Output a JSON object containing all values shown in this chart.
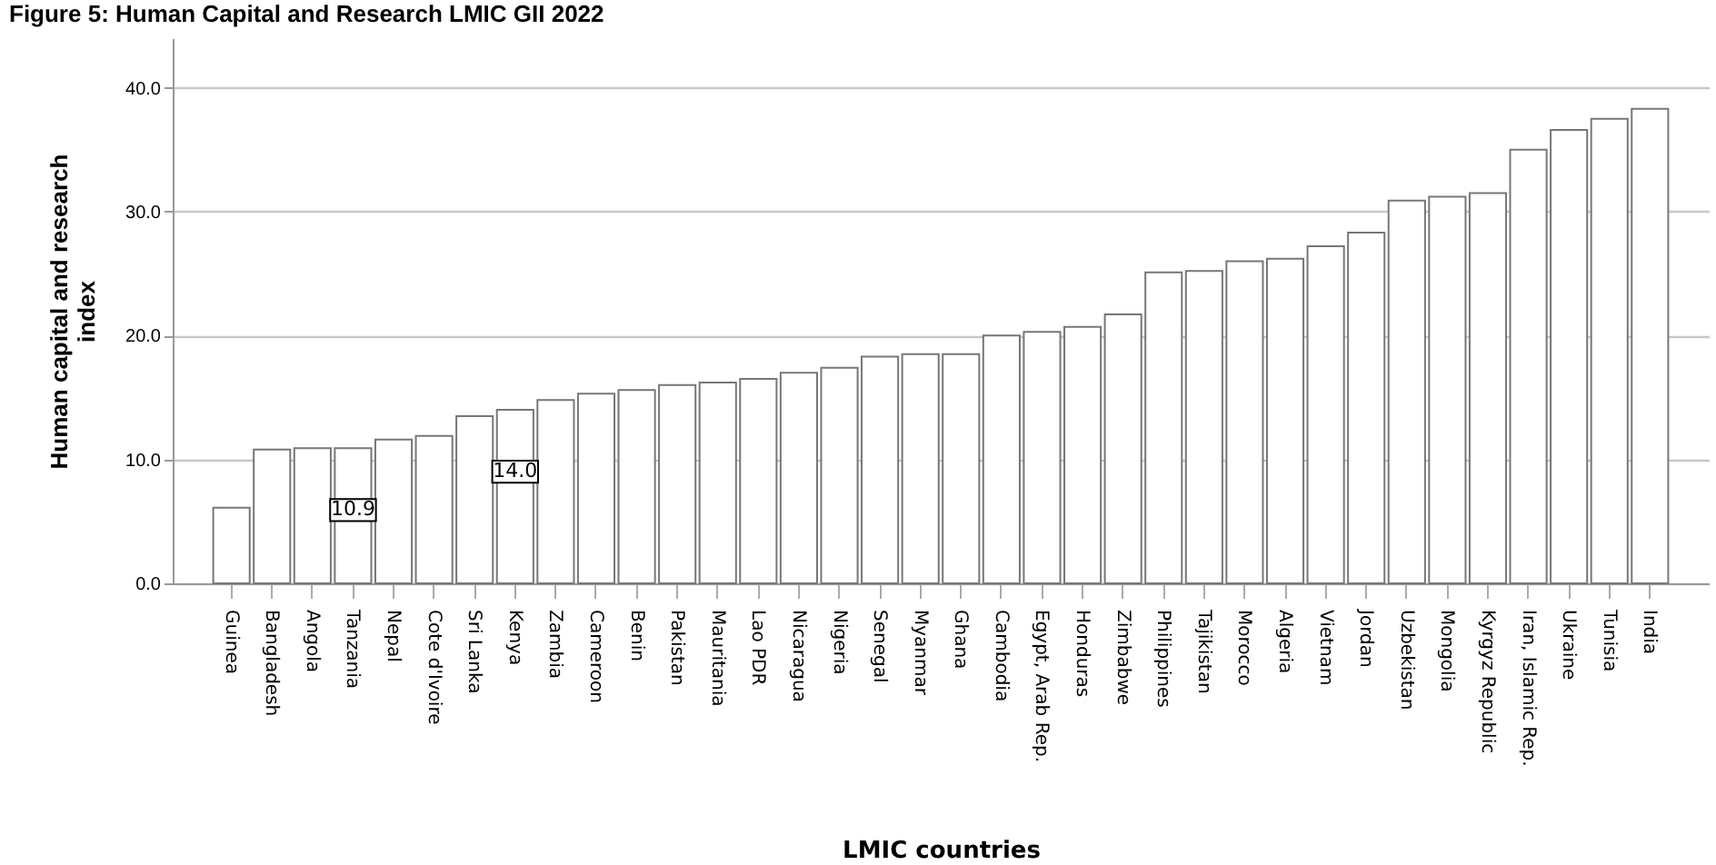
{
  "chart_data": {
    "type": "bar",
    "title": "Figure 5: Human Capital and Research LMIC GII 2022",
    "xlabel": "LMIC countries",
    "ylabel": "Human capital and research index",
    "categories": [
      "Guinea",
      "Bangladesh",
      "Angola",
      "Tanzania",
      "Nepal",
      "Cote d'Ivoire",
      "Sri Lanka",
      "Kenya",
      "Zambia",
      "Cameroon",
      "Benin",
      "Pakistan",
      "Mauritania",
      "Lao PDR",
      "Nicaragua",
      "Nigeria",
      "Senegal",
      "Myanmar",
      "Ghana",
      "Cambodia",
      "Egypt, Arab Rep.",
      "Honduras",
      "Zimbabwe",
      "Philippines",
      "Tajikistan",
      "Morocco",
      "Algeria",
      "Vietnam",
      "Jordan",
      "Uzbekistan",
      "Mongolia",
      "Kyrgyz Republic",
      "Iran, Islamic Rep.",
      "Ukraine",
      "Tunisia",
      "India"
    ],
    "values": [
      6.1,
      10.8,
      10.9,
      10.9,
      11.6,
      11.9,
      13.5,
      14.0,
      14.8,
      15.3,
      15.6,
      16.0,
      16.2,
      16.5,
      17.0,
      17.4,
      18.3,
      18.5,
      18.5,
      20.0,
      20.3,
      20.7,
      21.7,
      25.1,
      25.2,
      26.0,
      26.2,
      27.2,
      28.3,
      30.9,
      31.2,
      31.5,
      35.0,
      36.6,
      37.5,
      38.3
    ],
    "value_labels": [
      null,
      null,
      null,
      "10.9",
      null,
      null,
      null,
      "14.0",
      null,
      null,
      null,
      null,
      null,
      null,
      null,
      null,
      null,
      null,
      null,
      null,
      null,
      null,
      null,
      null,
      null,
      null,
      null,
      null,
      null,
      null,
      null,
      null,
      null,
      null,
      null,
      null
    ],
    "color": "#ffffff",
    "ylim": [
      0,
      44
    ],
    "yticks": [
      {
        "value": 0,
        "label": "0.0"
      },
      {
        "value": 10,
        "label": "10.0"
      },
      {
        "value": 20,
        "label": "20.0"
      },
      {
        "value": 30,
        "label": "30.0"
      },
      {
        "value": 40,
        "label": "40.0"
      }
    ],
    "grid": "y"
  }
}
